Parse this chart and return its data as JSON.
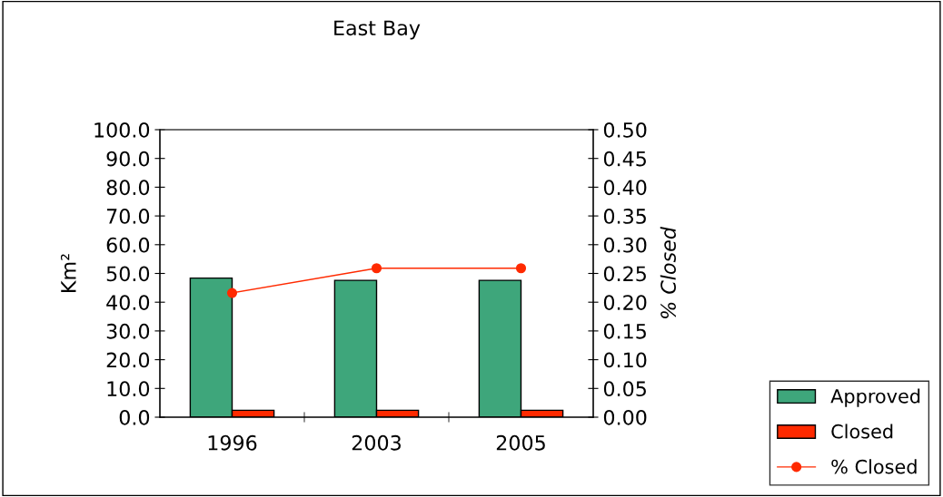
{
  "chart_data": {
    "type": "bar",
    "title": "East Bay",
    "ylabel": "Km²",
    "y2label": "% Closed",
    "categories": [
      "1996",
      "2003",
      "2005"
    ],
    "series": [
      {
        "name": "Approved",
        "color": "#3ea67b",
        "values": [
          48.4,
          47.6,
          47.6
        ]
      },
      {
        "name": "Closed",
        "color": "#ff2a00",
        "values": [
          2.4,
          2.4,
          2.4
        ]
      },
      {
        "name": "% Closed",
        "type": "line",
        "axis": "y2",
        "color": "#ff2a00",
        "marker": "circle",
        "values": [
          0.216,
          0.259,
          0.259
        ]
      }
    ],
    "ylim": [
      0,
      100
    ],
    "yticks": [
      {
        "value": 0,
        "label": "0.0"
      },
      {
        "value": 10,
        "label": "10.0"
      },
      {
        "value": 20,
        "label": "20.0"
      },
      {
        "value": 30,
        "label": "30.0"
      },
      {
        "value": 40,
        "label": "40.0"
      },
      {
        "value": 50,
        "label": "50.0"
      },
      {
        "value": 60,
        "label": "60.0"
      },
      {
        "value": 70,
        "label": "70.0"
      },
      {
        "value": 80,
        "label": "80.0"
      },
      {
        "value": 90,
        "label": "90.0"
      },
      {
        "value": 100,
        "label": "100.0"
      }
    ],
    "y2lim": [
      0,
      0.5
    ],
    "y2ticks": [
      {
        "value": 0,
        "label": "0.00"
      },
      {
        "value": 0.05,
        "label": "0.05"
      },
      {
        "value": 0.1,
        "label": "0.10"
      },
      {
        "value": 0.15,
        "label": "0.15"
      },
      {
        "value": 0.2,
        "label": "0.20"
      },
      {
        "value": 0.25,
        "label": "0.25"
      },
      {
        "value": 0.3,
        "label": "0.30"
      },
      {
        "value": 0.35,
        "label": "0.35"
      },
      {
        "value": 0.4,
        "label": "0.40"
      },
      {
        "value": 0.45,
        "label": "0.45"
      },
      {
        "value": 0.5,
        "label": "0.50"
      }
    ],
    "legend": "bottom right",
    "grid": false
  }
}
